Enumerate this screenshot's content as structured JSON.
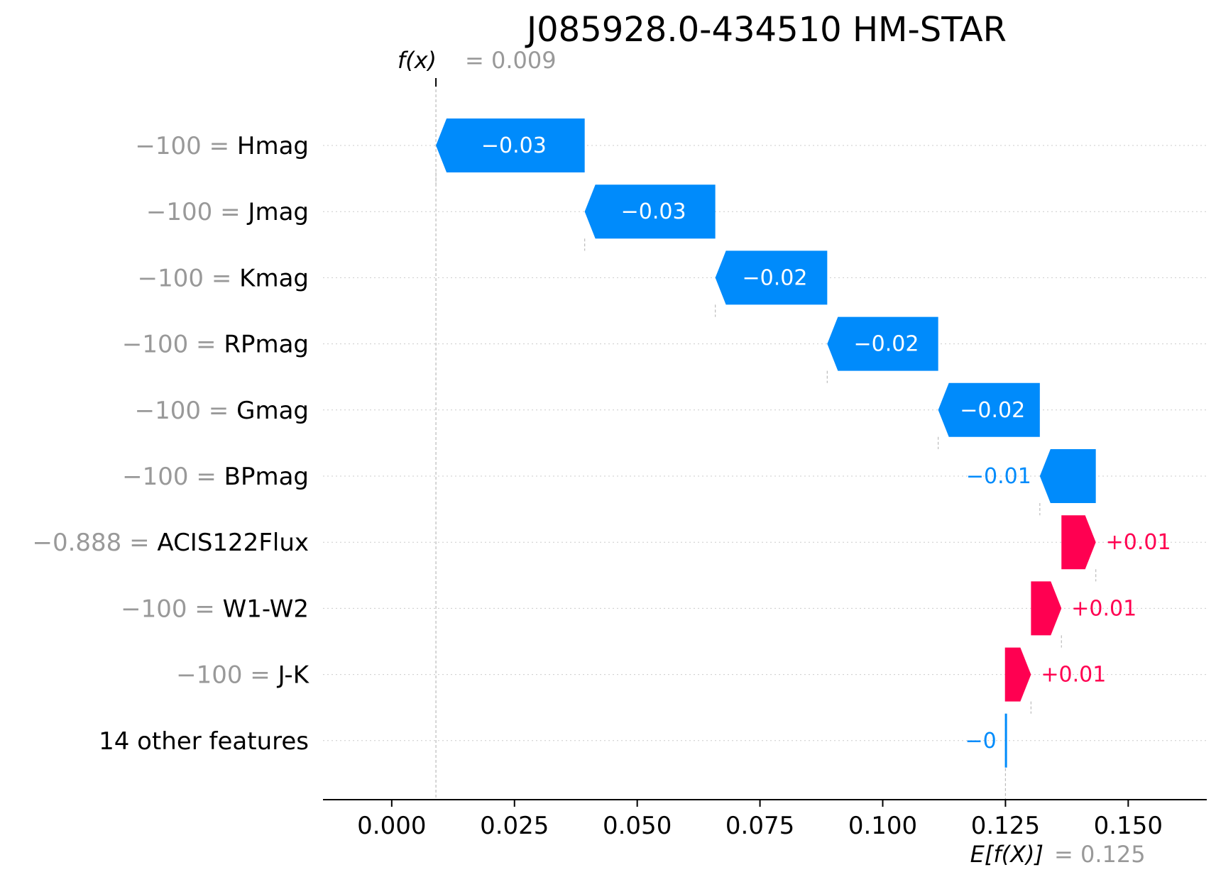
{
  "chart_data": {
    "type": "waterfall",
    "title": "J085928.0-434510 HM-STAR",
    "fx": {
      "label": "f(x)",
      "value_text": "= 0.009",
      "value": 0.009
    },
    "base": {
      "label": "E[f(X)]",
      "value_text": "= 0.125",
      "value": 0.125
    },
    "xlim": [
      -0.014,
      0.166
    ],
    "x_ticks": [
      0.0,
      0.025,
      0.05,
      0.075,
      0.1,
      0.125,
      0.15
    ],
    "x_tick_labels": [
      "0.000",
      "0.025",
      "0.050",
      "0.075",
      "0.100",
      "0.125",
      "0.150"
    ],
    "features": [
      {
        "name": "Hmag",
        "value_text": "−100 =",
        "start": 0.0393,
        "end": 0.009,
        "label": "−0.03"
      },
      {
        "name": "Jmag",
        "value_text": "−100 =",
        "start": 0.0659,
        "end": 0.0393,
        "label": "−0.03"
      },
      {
        "name": "Kmag",
        "value_text": "−100 =",
        "start": 0.0887,
        "end": 0.0659,
        "label": "−0.02"
      },
      {
        "name": "RPmag",
        "value_text": "−100 =",
        "start": 0.1113,
        "end": 0.0887,
        "label": "−0.02"
      },
      {
        "name": "Gmag",
        "value_text": "−100 =",
        "start": 0.132,
        "end": 0.1113,
        "label": "−0.02"
      },
      {
        "name": "BPmag",
        "value_text": "−100 =",
        "start": 0.1434,
        "end": 0.132,
        "label": "−0.01"
      },
      {
        "name": "ACIS122Flux",
        "value_text": "−0.888 =",
        "start": 0.1364,
        "end": 0.1434,
        "label": "+0.01"
      },
      {
        "name": "W1-W2",
        "value_text": "−100 =",
        "start": 0.1302,
        "end": 0.1364,
        "label": "+0.01"
      },
      {
        "name": "J-K",
        "value_text": "−100 =",
        "start": 0.1249,
        "end": 0.1302,
        "label": "+0.01"
      },
      {
        "name": "14 other features",
        "value_text": "",
        "start": 0.1251,
        "end": 0.1249,
        "label": "−0"
      }
    ],
    "colors": {
      "negative": "#008bfb",
      "positive": "#ff0051",
      "value_text": "#999999"
    }
  }
}
